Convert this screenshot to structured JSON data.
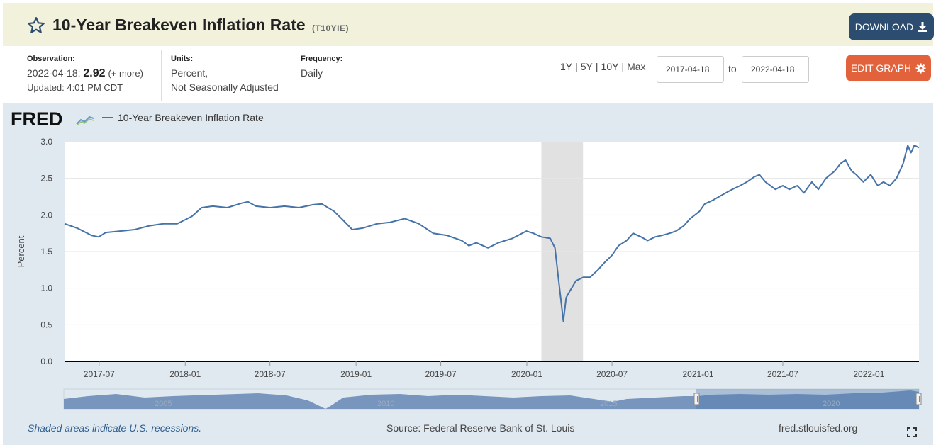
{
  "header": {
    "title": "10-Year Breakeven Inflation Rate",
    "series_id": "(T10YIE)",
    "download_label": "DOWNLOAD",
    "star_icon": "star-outline-icon",
    "download_icon": "download-icon"
  },
  "meta": {
    "observation_label": "Observation:",
    "observation_date": "2022-04-18:",
    "observation_value": "2.92",
    "observation_more": "(+ more)",
    "updated": "Updated: 4:01 PM CDT",
    "units_label": "Units:",
    "units_line1": "Percent,",
    "units_line2": "Not Seasonally Adjusted",
    "frequency_label": "Frequency:",
    "frequency_value": "Daily"
  },
  "controls": {
    "ranges": [
      "1Y",
      "5Y",
      "10Y",
      "Max"
    ],
    "date_start": "2017-04-18",
    "to_label": "to",
    "date_end": "2022-04-18",
    "edit_graph_label": "EDIT GRAPH",
    "edit_graph_icon": "gear-icon"
  },
  "graph": {
    "logo_text": "FRED",
    "legend_label": "10-Year Breakeven Inflation Rate",
    "series_color": "#4572a7",
    "recession_color": "#e1e1e1",
    "navigator_labels": [
      "2005",
      "2010",
      "2015",
      "2020"
    ]
  },
  "footer": {
    "note": "Shaded areas indicate U.S. recessions.",
    "source": "Source: Federal Reserve Bank of St. Louis",
    "url": "fred.stlouisfed.org"
  },
  "chart_data": {
    "type": "line",
    "title": "10-Year Breakeven Inflation Rate",
    "ylabel": "Percent",
    "xlabel": "",
    "ylim": [
      0.0,
      3.0
    ],
    "xlim": [
      "2017-04-18",
      "2022-04-18"
    ],
    "y_ticks": [
      "0.0",
      "0.5",
      "1.0",
      "1.5",
      "2.0",
      "2.5",
      "3.0"
    ],
    "x_ticks": [
      "2017-07",
      "2018-01",
      "2018-07",
      "2019-01",
      "2019-07",
      "2020-01",
      "2020-07",
      "2021-01",
      "2021-07",
      "2022-01"
    ],
    "grid": true,
    "recessions": [
      {
        "start": "2020-02-01",
        "end": "2020-04-30"
      }
    ],
    "series": [
      {
        "name": "10-Year Breakeven Inflation Rate",
        "x": [
          "2017-04-18",
          "2017-05-15",
          "2017-06-15",
          "2017-06-30",
          "2017-07-15",
          "2017-08-15",
          "2017-09-15",
          "2017-10-15",
          "2017-11-15",
          "2017-12-15",
          "2018-01-15",
          "2018-02-05",
          "2018-03-01",
          "2018-04-01",
          "2018-05-01",
          "2018-05-15",
          "2018-06-01",
          "2018-07-01",
          "2018-08-01",
          "2018-09-01",
          "2018-10-01",
          "2018-10-20",
          "2018-11-15",
          "2018-12-01",
          "2018-12-24",
          "2019-01-15",
          "2019-02-15",
          "2019-03-15",
          "2019-04-15",
          "2019-05-15",
          "2019-06-15",
          "2019-07-15",
          "2019-08-15",
          "2019-08-30",
          "2019-09-15",
          "2019-10-10",
          "2019-11-01",
          "2019-12-01",
          "2019-12-31",
          "2020-01-15",
          "2020-02-01",
          "2020-02-20",
          "2020-03-01",
          "2020-03-09",
          "2020-03-19",
          "2020-03-25",
          "2020-04-01",
          "2020-04-15",
          "2020-05-01",
          "2020-05-15",
          "2020-06-01",
          "2020-06-15",
          "2020-07-01",
          "2020-07-15",
          "2020-08-01",
          "2020-08-15",
          "2020-09-01",
          "2020-09-15",
          "2020-10-01",
          "2020-10-15",
          "2020-11-01",
          "2020-11-15",
          "2020-12-01",
          "2020-12-15",
          "2021-01-04",
          "2021-01-15",
          "2021-02-01",
          "2021-02-15",
          "2021-03-01",
          "2021-03-15",
          "2021-04-01",
          "2021-04-15",
          "2021-05-01",
          "2021-05-12",
          "2021-05-25",
          "2021-06-15",
          "2021-07-01",
          "2021-07-15",
          "2021-08-01",
          "2021-08-15",
          "2021-09-01",
          "2021-09-15",
          "2021-10-01",
          "2021-10-20",
          "2021-11-01",
          "2021-11-12",
          "2021-11-25",
          "2021-12-05",
          "2021-12-20",
          "2022-01-05",
          "2022-01-20",
          "2022-02-01",
          "2022-02-15",
          "2022-03-01",
          "2022-03-15",
          "2022-03-25",
          "2022-04-01",
          "2022-04-08",
          "2022-04-18"
        ],
        "values": [
          1.88,
          1.82,
          1.72,
          1.7,
          1.76,
          1.78,
          1.8,
          1.85,
          1.88,
          1.88,
          1.98,
          2.1,
          2.12,
          2.1,
          2.16,
          2.18,
          2.12,
          2.1,
          2.12,
          2.1,
          2.14,
          2.15,
          2.05,
          1.95,
          1.8,
          1.82,
          1.88,
          1.9,
          1.95,
          1.88,
          1.75,
          1.72,
          1.65,
          1.58,
          1.62,
          1.55,
          1.62,
          1.68,
          1.78,
          1.75,
          1.7,
          1.68,
          1.55,
          1.1,
          0.55,
          0.87,
          0.95,
          1.1,
          1.15,
          1.15,
          1.25,
          1.35,
          1.45,
          1.58,
          1.65,
          1.75,
          1.7,
          1.65,
          1.7,
          1.72,
          1.75,
          1.78,
          1.85,
          1.95,
          2.05,
          2.15,
          2.2,
          2.25,
          2.3,
          2.35,
          2.4,
          2.45,
          2.52,
          2.55,
          2.45,
          2.35,
          2.4,
          2.35,
          2.4,
          2.3,
          2.45,
          2.35,
          2.5,
          2.6,
          2.7,
          2.75,
          2.6,
          2.55,
          2.45,
          2.55,
          2.4,
          2.45,
          2.4,
          2.5,
          2.7,
          2.95,
          2.85,
          2.95,
          2.92
        ]
      }
    ]
  }
}
